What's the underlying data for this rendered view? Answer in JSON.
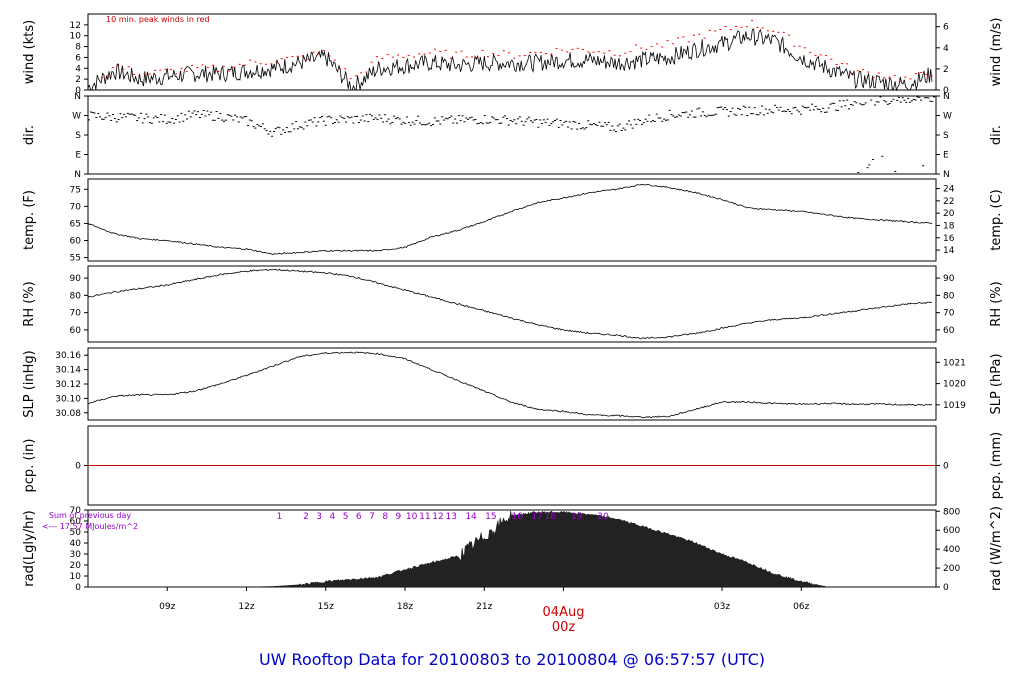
{
  "footer": {
    "prefix": "UW Rooftop Data for",
    "start": "20100803",
    "to": "to",
    "end": "20100804",
    "at": "@ 06:57:57",
    "tz": "(UTC)"
  },
  "x_axis": {
    "tick_labels": [
      "09z",
      "12z",
      "15z",
      "18z",
      "21z",
      "03z",
      "06z"
    ],
    "day_label": "04Aug",
    "day_hour": "00z"
  },
  "chart_data": [
    {
      "type": "line",
      "ylabel_left": "wind (kts)",
      "ylabel_right": "wind (m/s)",
      "annotation": "10 min. peak winds in red",
      "yticks_left": [
        "0",
        "2",
        "4",
        "6",
        "8",
        "10",
        "12"
      ],
      "yticks_right": [
        "0",
        "2",
        "4",
        "6"
      ],
      "ylim": [
        0,
        14
      ],
      "series": [
        {
          "values_hourly": [
            0.5,
            3.5,
            2,
            2.5,
            3,
            3,
            3.5,
            4,
            5,
            6,
            0.5,
            4,
            4.5,
            5,
            4.5,
            5,
            5,
            5,
            5.5,
            5.5,
            5,
            5.5,
            6,
            7.5,
            8.5,
            10,
            9,
            6,
            4,
            2,
            1.5,
            1,
            3
          ]
        },
        {
          "color": "#ff0000",
          "values_hourly": [
            0.5,
            4.5,
            3,
            3.5,
            4,
            4,
            5,
            5.5,
            6,
            7,
            2,
            6,
            6.5,
            7,
            6.5,
            7,
            6.5,
            7,
            7.5,
            7.5,
            7,
            8,
            8.5,
            10,
            11,
            12.5,
            11,
            8,
            6,
            3.5,
            3,
            2,
            3.5
          ]
        }
      ]
    },
    {
      "type": "scatter",
      "ylabel": "dir.",
      "yticks_left": [
        "N",
        "E",
        "S",
        "W",
        "N"
      ],
      "yticks_right": [
        "N",
        "E",
        "S",
        "W",
        "N"
      ],
      "ylim": [
        0,
        360
      ],
      "values_hourly": [
        270,
        265,
        260,
        255,
        275,
        270,
        245,
        195,
        230,
        250,
        255,
        260,
        250,
        245,
        250,
        255,
        250,
        240,
        235,
        225,
        215,
        250,
        275,
        285,
        290,
        295,
        300,
        300,
        310,
        330,
        340,
        350,
        355
      ]
    },
    {
      "type": "line",
      "ylabel_left": "temp. (F)",
      "ylabel_right": "temp. (C)",
      "yticks_left": [
        "55",
        "60",
        "65",
        "70",
        "75"
      ],
      "yticks_right": [
        "14",
        "16",
        "18",
        "20",
        "22",
        "24"
      ],
      "ylim": [
        54,
        78
      ],
      "values_hourly": [
        65,
        62,
        60.5,
        60,
        59,
        58,
        57.5,
        56,
        56.5,
        57,
        57,
        57,
        58,
        61,
        63,
        65.5,
        68.5,
        71,
        72.5,
        74,
        75,
        76.5,
        75.5,
        74,
        72,
        69.5,
        69,
        68.5,
        67.5,
        66.5,
        66,
        65.5,
        65
      ]
    },
    {
      "type": "line",
      "ylabel_left": "RH (%)",
      "ylabel_right": "RH (%)",
      "yticks_left": [
        "60",
        "70",
        "80",
        "90"
      ],
      "yticks_right": [
        "60",
        "70",
        "80",
        "90"
      ],
      "ylim": [
        53,
        97
      ],
      "values_hourly": [
        79,
        82,
        84,
        86,
        89,
        92,
        94,
        95,
        94,
        93,
        91,
        87,
        83,
        79,
        75,
        71,
        67,
        63,
        60,
        58,
        57,
        55,
        56,
        58,
        61,
        64,
        66,
        67,
        69,
        71,
        73,
        75,
        76
      ]
    },
    {
      "type": "line",
      "ylabel_left": "SLP (inHg)",
      "ylabel_right": "SLP (hPa)",
      "yticks_left": [
        "30.08",
        "30.10",
        "30.12",
        "30.14",
        "30.16"
      ],
      "yticks_right": [
        "1019",
        "1020",
        "1021"
      ],
      "ylim": [
        30.07,
        30.17
      ],
      "values_hourly": [
        30.093,
        30.103,
        30.105,
        30.105,
        30.11,
        30.12,
        30.132,
        30.145,
        30.158,
        30.163,
        30.164,
        30.162,
        30.155,
        30.14,
        30.125,
        30.11,
        30.095,
        30.085,
        30.082,
        30.077,
        30.076,
        30.074,
        30.075,
        30.085,
        30.095,
        30.095,
        30.093,
        30.092,
        30.093,
        30.092,
        30.092,
        30.091,
        30.091
      ]
    },
    {
      "type": "line",
      "ylabel_left": "pcp. (in)",
      "ylabel_right": "pcp. (mm)",
      "yticks_left": [
        "0"
      ],
      "yticks_right": [
        "0"
      ],
      "ylim": [
        -1,
        1
      ],
      "values": [
        0
      ]
    },
    {
      "type": "area",
      "ylabel_left": "rad(Lgly/hr)",
      "ylabel_right": "rad (W/m^2)",
      "yticks_left": [
        "0",
        "10",
        "20",
        "30",
        "40",
        "50",
        "60",
        "70"
      ],
      "yticks_right": [
        "0",
        "200",
        "400",
        "600",
        "800"
      ],
      "ylim": [
        0,
        70
      ],
      "annotation_line1": "Sum of previous day",
      "annotation_line2": "<--- 17.57 MJoules/m^2",
      "hour_marks": [
        "1",
        "2",
        "3",
        "4",
        "5",
        "6",
        "7",
        "8",
        "9",
        "10",
        "11",
        "12",
        "13",
        "14",
        "15",
        "16",
        "17",
        "18",
        "19",
        "20"
      ],
      "hour_offsets": [
        7.25,
        8.25,
        8.75,
        9.25,
        9.75,
        10.25,
        10.75,
        11.25,
        11.75,
        12.25,
        12.75,
        13.25,
        13.75,
        14.5,
        15.25,
        16.25,
        17,
        17.5,
        18.5,
        19.5
      ],
      "values_hourly": [
        0,
        0,
        0,
        0,
        0,
        0,
        0,
        0.5,
        2,
        5,
        7,
        9,
        16,
        22,
        28,
        46,
        65,
        68,
        68,
        66,
        62,
        55,
        48,
        40,
        30,
        22,
        12,
        5,
        0,
        0,
        0,
        0,
        0
      ]
    }
  ]
}
